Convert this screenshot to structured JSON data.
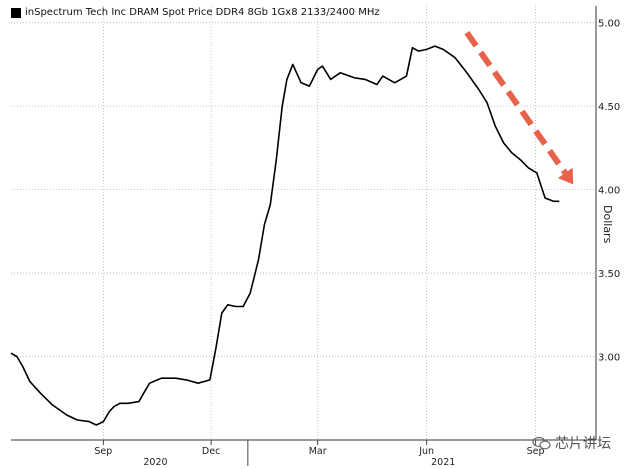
{
  "chart_data": {
    "type": "line",
    "legend": "inSpectrum Tech Inc DRAM Spot Price DDR4 8Gb 1Gx8 2133/2400 MHz",
    "ylabel": "Dollars",
    "ylim": [
      2.5,
      5.1
    ],
    "yticks": [
      3.0,
      3.5,
      4.0,
      4.5,
      5.0
    ],
    "ytick_labels": [
      "3.00",
      "3.50",
      "4.00",
      "4.50",
      "5.00"
    ],
    "xlim": [
      "2020-06-15",
      "2021-10-22"
    ],
    "xticks": [
      {
        "date": "2020-09-01",
        "label": "Sep"
      },
      {
        "date": "2020-12-01",
        "label": "Dec"
      },
      {
        "date": "2021-03-01",
        "label": "Mar"
      },
      {
        "date": "2021-06-01",
        "label": "Jun"
      },
      {
        "date": "2021-09-01",
        "label": "Sep"
      }
    ],
    "years": [
      {
        "label": "2020",
        "center": "2020-10-15"
      },
      {
        "label": "2021",
        "center": "2021-06-15"
      }
    ],
    "year_separator": "2021-01-01",
    "grid": true,
    "legend_position": "top-left",
    "annotation": "red dashed downward trend arrow",
    "line_color": "#000000",
    "arrow_color": "#e8614a",
    "series": [
      {
        "points": [
          [
            "2020-06-15",
            3.02
          ],
          [
            "2020-06-20",
            3.0
          ],
          [
            "2020-06-25",
            2.94
          ],
          [
            "2020-07-01",
            2.85
          ],
          [
            "2020-07-10",
            2.78
          ],
          [
            "2020-07-20",
            2.71
          ],
          [
            "2020-08-01",
            2.65
          ],
          [
            "2020-08-10",
            2.62
          ],
          [
            "2020-08-20",
            2.61
          ],
          [
            "2020-08-26",
            2.59
          ],
          [
            "2020-09-01",
            2.61
          ],
          [
            "2020-09-06",
            2.67
          ],
          [
            "2020-09-10",
            2.7
          ],
          [
            "2020-09-15",
            2.72
          ],
          [
            "2020-09-22",
            2.72
          ],
          [
            "2020-10-01",
            2.73
          ],
          [
            "2020-10-05",
            2.78
          ],
          [
            "2020-10-10",
            2.84
          ],
          [
            "2020-10-20",
            2.87
          ],
          [
            "2020-11-01",
            2.87
          ],
          [
            "2020-11-10",
            2.86
          ],
          [
            "2020-11-20",
            2.84
          ],
          [
            "2020-11-30",
            2.86
          ],
          [
            "2020-12-05",
            3.05
          ],
          [
            "2020-12-10",
            3.26
          ],
          [
            "2020-12-15",
            3.31
          ],
          [
            "2020-12-22",
            3.3
          ],
          [
            "2020-12-28",
            3.3
          ],
          [
            "2021-01-03",
            3.38
          ],
          [
            "2021-01-10",
            3.58
          ],
          [
            "2021-01-15",
            3.79
          ],
          [
            "2021-01-20",
            3.91
          ],
          [
            "2021-01-25",
            4.18
          ],
          [
            "2021-01-30",
            4.5
          ],
          [
            "2021-02-03",
            4.66
          ],
          [
            "2021-02-08",
            4.75
          ],
          [
            "2021-02-15",
            4.64
          ],
          [
            "2021-02-22",
            4.62
          ],
          [
            "2021-03-01",
            4.72
          ],
          [
            "2021-03-05",
            4.74
          ],
          [
            "2021-03-12",
            4.66
          ],
          [
            "2021-03-20",
            4.7
          ],
          [
            "2021-04-01",
            4.67
          ],
          [
            "2021-04-10",
            4.66
          ],
          [
            "2021-04-20",
            4.63
          ],
          [
            "2021-04-25",
            4.68
          ],
          [
            "2021-05-05",
            4.64
          ],
          [
            "2021-05-15",
            4.68
          ],
          [
            "2021-05-20",
            4.85
          ],
          [
            "2021-05-25",
            4.83
          ],
          [
            "2021-06-01",
            4.84
          ],
          [
            "2021-06-08",
            4.86
          ],
          [
            "2021-06-15",
            4.84
          ],
          [
            "2021-06-25",
            4.79
          ],
          [
            "2021-07-05",
            4.7
          ],
          [
            "2021-07-15",
            4.6
          ],
          [
            "2021-07-22",
            4.52
          ],
          [
            "2021-07-29",
            4.38
          ],
          [
            "2021-08-05",
            4.28
          ],
          [
            "2021-08-12",
            4.22
          ],
          [
            "2021-08-19",
            4.18
          ],
          [
            "2021-08-26",
            4.13
          ],
          [
            "2021-09-02",
            4.1
          ],
          [
            "2021-09-09",
            3.95
          ],
          [
            "2021-09-16",
            3.93
          ],
          [
            "2021-09-21",
            3.93
          ]
        ]
      }
    ]
  },
  "watermark": "芯片讲坛"
}
